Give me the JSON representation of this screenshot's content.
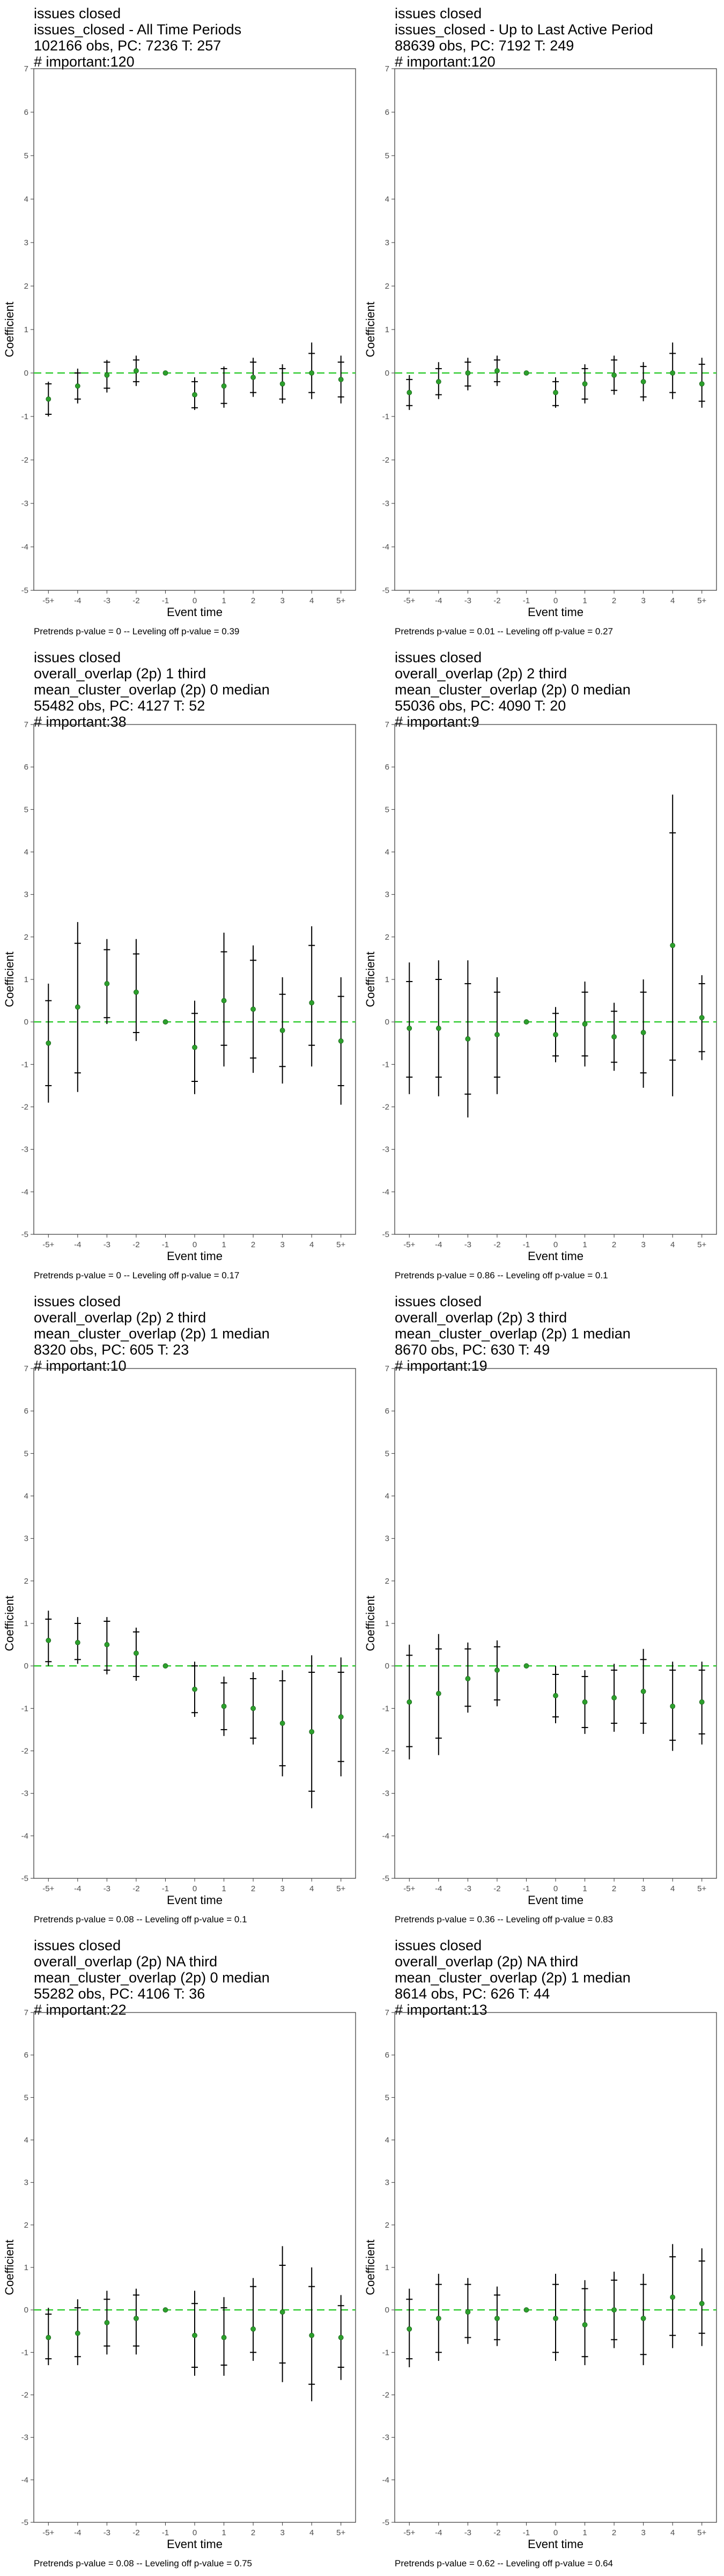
{
  "colors": {
    "point": "#2ca02c",
    "errorbar": "#000000",
    "zero_line": "#33cc33",
    "panel_border": "#333333"
  },
  "chart_data": [
    {
      "type": "errorbar",
      "title_lines": [
        "issues closed",
        "issues_closed - All Time Periods",
        "102166 obs, PC: 7236 T: 257",
        "# important:120"
      ],
      "xlabel": "Event time",
      "ylabel": "Coefficient",
      "ylim": [
        -5,
        7
      ],
      "categories": [
        "-5+",
        "-4",
        "-3",
        "-2",
        "-1",
        "0",
        "1",
        "2",
        "3",
        "4",
        "5+"
      ],
      "y": [
        -0.6,
        -0.3,
        -0.05,
        0.05,
        0.0,
        -0.5,
        -0.3,
        -0.1,
        -0.25,
        0.0,
        -0.15
      ],
      "ci95_low": [
        -1.0,
        -0.7,
        -0.45,
        -0.3,
        0.0,
        -0.85,
        -0.8,
        -0.55,
        -0.7,
        -0.6,
        -0.7
      ],
      "ci95_high": [
        -0.2,
        0.1,
        0.3,
        0.4,
        0.0,
        -0.1,
        0.15,
        0.35,
        0.2,
        0.7,
        0.4
      ],
      "ci90_low": [
        -0.95,
        -0.6,
        -0.35,
        -0.2,
        0.0,
        -0.8,
        -0.7,
        -0.45,
        -0.6,
        -0.45,
        -0.55
      ],
      "ci90_high": [
        -0.25,
        0.0,
        0.25,
        0.3,
        0.0,
        -0.2,
        0.1,
        0.25,
        0.1,
        0.45,
        0.25
      ],
      "caption": "Pretrends p-value = 0 -- Leveling off p-value = 0.39"
    },
    {
      "type": "errorbar",
      "title_lines": [
        "issues closed",
        "issues_closed - Up to Last Active Period",
        "88639 obs, PC: 7192 T: 249",
        "# important:120"
      ],
      "xlabel": "Event time",
      "ylabel": "Coefficient",
      "ylim": [
        -5,
        7
      ],
      "categories": [
        "-5+",
        "-4",
        "-3",
        "-2",
        "-1",
        "0",
        "1",
        "2",
        "3",
        "4",
        "5+"
      ],
      "y": [
        -0.45,
        -0.2,
        0.0,
        0.05,
        0.0,
        -0.45,
        -0.25,
        -0.05,
        -0.2,
        0.0,
        -0.25
      ],
      "ci95_low": [
        -0.85,
        -0.6,
        -0.4,
        -0.3,
        0.0,
        -0.8,
        -0.7,
        -0.5,
        -0.65,
        -0.6,
        -0.8
      ],
      "ci95_high": [
        -0.05,
        0.25,
        0.35,
        0.4,
        0.0,
        -0.1,
        0.2,
        0.4,
        0.25,
        0.7,
        0.35
      ],
      "ci90_low": [
        -0.75,
        -0.5,
        -0.3,
        -0.2,
        0.0,
        -0.75,
        -0.6,
        -0.4,
        -0.55,
        -0.45,
        -0.65
      ],
      "ci90_high": [
        -0.15,
        0.1,
        0.25,
        0.3,
        0.0,
        -0.2,
        0.1,
        0.3,
        0.15,
        0.45,
        0.2
      ],
      "caption": "Pretrends p-value = 0.01 -- Leveling off p-value = 0.27"
    },
    {
      "type": "errorbar",
      "title_lines": [
        "issues closed",
        "overall_overlap (2p) 1 third",
        "mean_cluster_overlap (2p) 0 median",
        "55482 obs, PC: 4127 T: 52",
        "# important:38"
      ],
      "xlabel": "Event time",
      "ylabel": "Coefficient",
      "ylim": [
        -5,
        7
      ],
      "categories": [
        "-5+",
        "-4",
        "-3",
        "-2",
        "-1",
        "0",
        "1",
        "2",
        "3",
        "4",
        "5+"
      ],
      "y": [
        -0.5,
        0.35,
        0.9,
        0.7,
        0.0,
        -0.6,
        0.5,
        0.3,
        -0.2,
        0.45,
        -0.45
      ],
      "ci95_low": [
        -1.9,
        -1.65,
        -0.05,
        -0.45,
        0.0,
        -1.7,
        -1.05,
        -1.2,
        -1.45,
        -1.05,
        -1.95
      ],
      "ci95_high": [
        0.9,
        2.35,
        1.95,
        1.95,
        0.0,
        0.5,
        2.1,
        1.8,
        1.05,
        2.25,
        1.05
      ],
      "ci90_low": [
        -1.5,
        -1.2,
        0.1,
        -0.25,
        0.0,
        -1.4,
        -0.55,
        -0.85,
        -1.05,
        -0.55,
        -1.5
      ],
      "ci90_high": [
        0.5,
        1.85,
        1.7,
        1.6,
        0.0,
        0.2,
        1.65,
        1.45,
        0.65,
        1.8,
        0.6
      ],
      "caption": "Pretrends p-value = 0 -- Leveling off p-value = 0.17"
    },
    {
      "type": "errorbar",
      "title_lines": [
        "issues closed",
        "overall_overlap (2p) 2 third",
        "mean_cluster_overlap (2p) 0 median",
        "55036 obs, PC: 4090 T: 20",
        "# important:9"
      ],
      "xlabel": "Event time",
      "ylabel": "Coefficient",
      "ylim": [
        -5,
        7
      ],
      "categories": [
        "-5+",
        "-4",
        "-3",
        "-2",
        "-1",
        "0",
        "1",
        "2",
        "3",
        "4",
        "5+"
      ],
      "y": [
        -0.15,
        -0.15,
        -0.4,
        -0.3,
        0.0,
        -0.3,
        -0.05,
        -0.35,
        -0.25,
        1.8,
        0.1
      ],
      "ci95_low": [
        -1.7,
        -1.75,
        -2.25,
        -1.7,
        0.0,
        -0.95,
        -1.05,
        -1.15,
        -1.55,
        -1.75,
        -0.9
      ],
      "ci95_high": [
        1.4,
        1.45,
        1.45,
        1.05,
        0.0,
        0.35,
        0.95,
        0.45,
        1.0,
        5.35,
        1.1
      ],
      "ci90_low": [
        -1.3,
        -1.3,
        -1.7,
        -1.3,
        0.0,
        -0.8,
        -0.8,
        -0.95,
        -1.2,
        -0.9,
        -0.7
      ],
      "ci90_high": [
        0.95,
        1.0,
        0.9,
        0.7,
        0.0,
        0.2,
        0.7,
        0.25,
        0.7,
        4.45,
        0.9
      ],
      "caption": "Pretrends p-value = 0.86 -- Leveling off p-value = 0.1"
    },
    {
      "type": "errorbar",
      "title_lines": [
        "issues closed",
        "overall_overlap (2p) 2 third",
        "mean_cluster_overlap (2p) 1 median",
        "8320 obs, PC: 605 T: 23",
        "# important:10"
      ],
      "xlabel": "Event time",
      "ylabel": "Coefficient",
      "ylim": [
        -5,
        7
      ],
      "categories": [
        "-5+",
        "-4",
        "-3",
        "-2",
        "-1",
        "0",
        "1",
        "2",
        "3",
        "4",
        "5+"
      ],
      "y": [
        0.6,
        0.55,
        0.5,
        0.3,
        0.0,
        -0.55,
        -0.95,
        -1.0,
        -1.35,
        -1.55,
        -1.2
      ],
      "ci95_low": [
        0.0,
        0.05,
        -0.2,
        -0.35,
        0.0,
        -1.2,
        -1.65,
        -1.85,
        -2.6,
        -3.35,
        -2.6
      ],
      "ci95_high": [
        1.3,
        1.15,
        1.15,
        0.9,
        0.0,
        0.1,
        -0.25,
        -0.15,
        -0.1,
        0.25,
        0.2
      ],
      "ci90_low": [
        0.1,
        0.15,
        -0.1,
        -0.25,
        0.0,
        -1.1,
        -1.5,
        -1.7,
        -2.35,
        -2.95,
        -2.25
      ],
      "ci90_high": [
        1.1,
        1.0,
        1.05,
        0.8,
        0.0,
        0.0,
        -0.4,
        -0.3,
        -0.35,
        -0.15,
        -0.15
      ],
      "caption": "Pretrends p-value = 0.08 -- Leveling off p-value = 0.1"
    },
    {
      "type": "errorbar",
      "title_lines": [
        "issues closed",
        "overall_overlap (2p) 3 third",
        "mean_cluster_overlap (2p) 1 median",
        "8670 obs, PC: 630 T: 49",
        "# important:19"
      ],
      "xlabel": "Event time",
      "ylabel": "Coefficient",
      "ylim": [
        -5,
        7
      ],
      "categories": [
        "-5+",
        "-4",
        "-3",
        "-2",
        "-1",
        "0",
        "1",
        "2",
        "3",
        "4",
        "5+"
      ],
      "y": [
        -0.85,
        -0.65,
        -0.3,
        -0.1,
        0.0,
        -0.7,
        -0.85,
        -0.75,
        -0.6,
        -0.95,
        -0.85
      ],
      "ci95_low": [
        -2.2,
        -2.1,
        -1.1,
        -0.95,
        0.0,
        -1.35,
        -1.6,
        -1.55,
        -1.6,
        -2.0,
        -1.85
      ],
      "ci95_high": [
        0.5,
        0.75,
        0.55,
        0.6,
        0.0,
        0.0,
        -0.1,
        0.05,
        0.4,
        0.1,
        0.1
      ],
      "ci90_low": [
        -1.9,
        -1.7,
        -0.95,
        -0.8,
        0.0,
        -1.2,
        -1.45,
        -1.35,
        -1.35,
        -1.75,
        -1.6
      ],
      "ci90_high": [
        0.25,
        0.4,
        0.4,
        0.45,
        0.0,
        -0.2,
        -0.25,
        -0.1,
        0.15,
        -0.1,
        -0.1
      ],
      "caption": "Pretrends p-value = 0.36 -- Leveling off p-value = 0.83"
    },
    {
      "type": "errorbar",
      "title_lines": [
        "issues closed",
        "overall_overlap (2p) NA third",
        "mean_cluster_overlap (2p) 0 median",
        "55282 obs, PC: 4106 T: 36",
        "# important:22"
      ],
      "xlabel": "Event time",
      "ylabel": "Coefficient",
      "ylim": [
        -5,
        7
      ],
      "categories": [
        "-5+",
        "-4",
        "-3",
        "-2",
        "-1",
        "0",
        "1",
        "2",
        "3",
        "4",
        "5+"
      ],
      "y": [
        -0.65,
        -0.55,
        -0.3,
        -0.2,
        0.0,
        -0.6,
        -0.65,
        -0.45,
        -0.05,
        -0.6,
        -0.65
      ],
      "ci95_low": [
        -1.3,
        -1.3,
        -1.05,
        -1.05,
        0.0,
        -1.55,
        -1.55,
        -1.2,
        -1.7,
        -2.15,
        -1.65
      ],
      "ci95_high": [
        0.05,
        0.25,
        0.45,
        0.5,
        0.0,
        0.45,
        0.3,
        0.75,
        1.5,
        1.0,
        0.35
      ],
      "ci90_low": [
        -1.15,
        -1.1,
        -0.85,
        -0.85,
        0.0,
        -1.35,
        -1.3,
        -1.0,
        -1.25,
        -1.75,
        -1.35
      ],
      "ci90_high": [
        -0.1,
        0.05,
        0.25,
        0.35,
        0.0,
        0.15,
        0.05,
        0.55,
        1.05,
        0.55,
        0.1
      ],
      "caption": "Pretrends p-value = 0.08 -- Leveling off p-value = 0.75"
    },
    {
      "type": "errorbar",
      "title_lines": [
        "issues closed",
        "overall_overlap (2p) NA third",
        "mean_cluster_overlap (2p) 1 median",
        "8614 obs, PC: 626 T: 44",
        "# important:13"
      ],
      "xlabel": "Event time",
      "ylabel": "Coefficient",
      "ylim": [
        -5,
        7
      ],
      "categories": [
        "-5+",
        "-4",
        "-3",
        "-2",
        "-1",
        "0",
        "1",
        "2",
        "3",
        "4",
        "5+"
      ],
      "y": [
        -0.45,
        -0.2,
        -0.05,
        -0.2,
        0.0,
        -0.2,
        -0.35,
        0.0,
        -0.2,
        0.3,
        0.15
      ],
      "ci95_low": [
        -1.35,
        -1.2,
        -0.8,
        -0.85,
        0.0,
        -1.2,
        -1.3,
        -0.9,
        -1.3,
        -0.9,
        -0.85
      ],
      "ci95_high": [
        0.5,
        0.85,
        0.75,
        0.55,
        0.0,
        0.85,
        0.7,
        0.9,
        0.85,
        1.55,
        1.45
      ],
      "ci90_low": [
        -1.15,
        -1.0,
        -0.65,
        -0.7,
        0.0,
        -1.0,
        -1.1,
        -0.7,
        -1.05,
        -0.6,
        -0.55
      ],
      "ci90_high": [
        0.25,
        0.6,
        0.6,
        0.35,
        0.0,
        0.6,
        0.5,
        0.7,
        0.6,
        1.25,
        1.15
      ],
      "caption": "Pretrends p-value = 0.62 -- Leveling off p-value = 0.64"
    }
  ]
}
